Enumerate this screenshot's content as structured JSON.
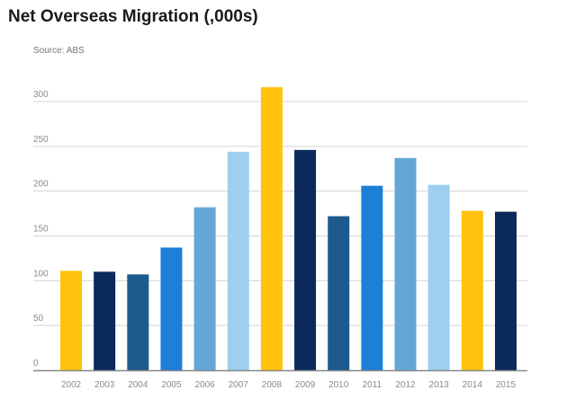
{
  "chart_data": {
    "type": "bar",
    "title": "Net Overseas Migration (,000s)",
    "subtitle": "Source: ABS",
    "xlabel": "",
    "ylabel": "",
    "ylim": [
      0,
      300
    ],
    "yticks": [
      0,
      50,
      100,
      150,
      200,
      250,
      300
    ],
    "grid": true,
    "categories": [
      "2002",
      "2003",
      "2004",
      "2005",
      "2006",
      "2007",
      "2008",
      "2009",
      "2010",
      "2011",
      "2012",
      "2013",
      "2014",
      "2015"
    ],
    "values": [
      111,
      110,
      107,
      137,
      182,
      244,
      316,
      246,
      172,
      206,
      237,
      207,
      178,
      177
    ],
    "colors": [
      "#FFC20E",
      "#0B2A5B",
      "#1F5A8E",
      "#1E7FD8",
      "#64A7D6",
      "#9ECFEF",
      "#FFC20E",
      "#0B2A5B",
      "#1F5A8E",
      "#1E7FD8",
      "#64A7D6",
      "#9ECFEF",
      "#FFC20E",
      "#0B2A5B"
    ]
  }
}
